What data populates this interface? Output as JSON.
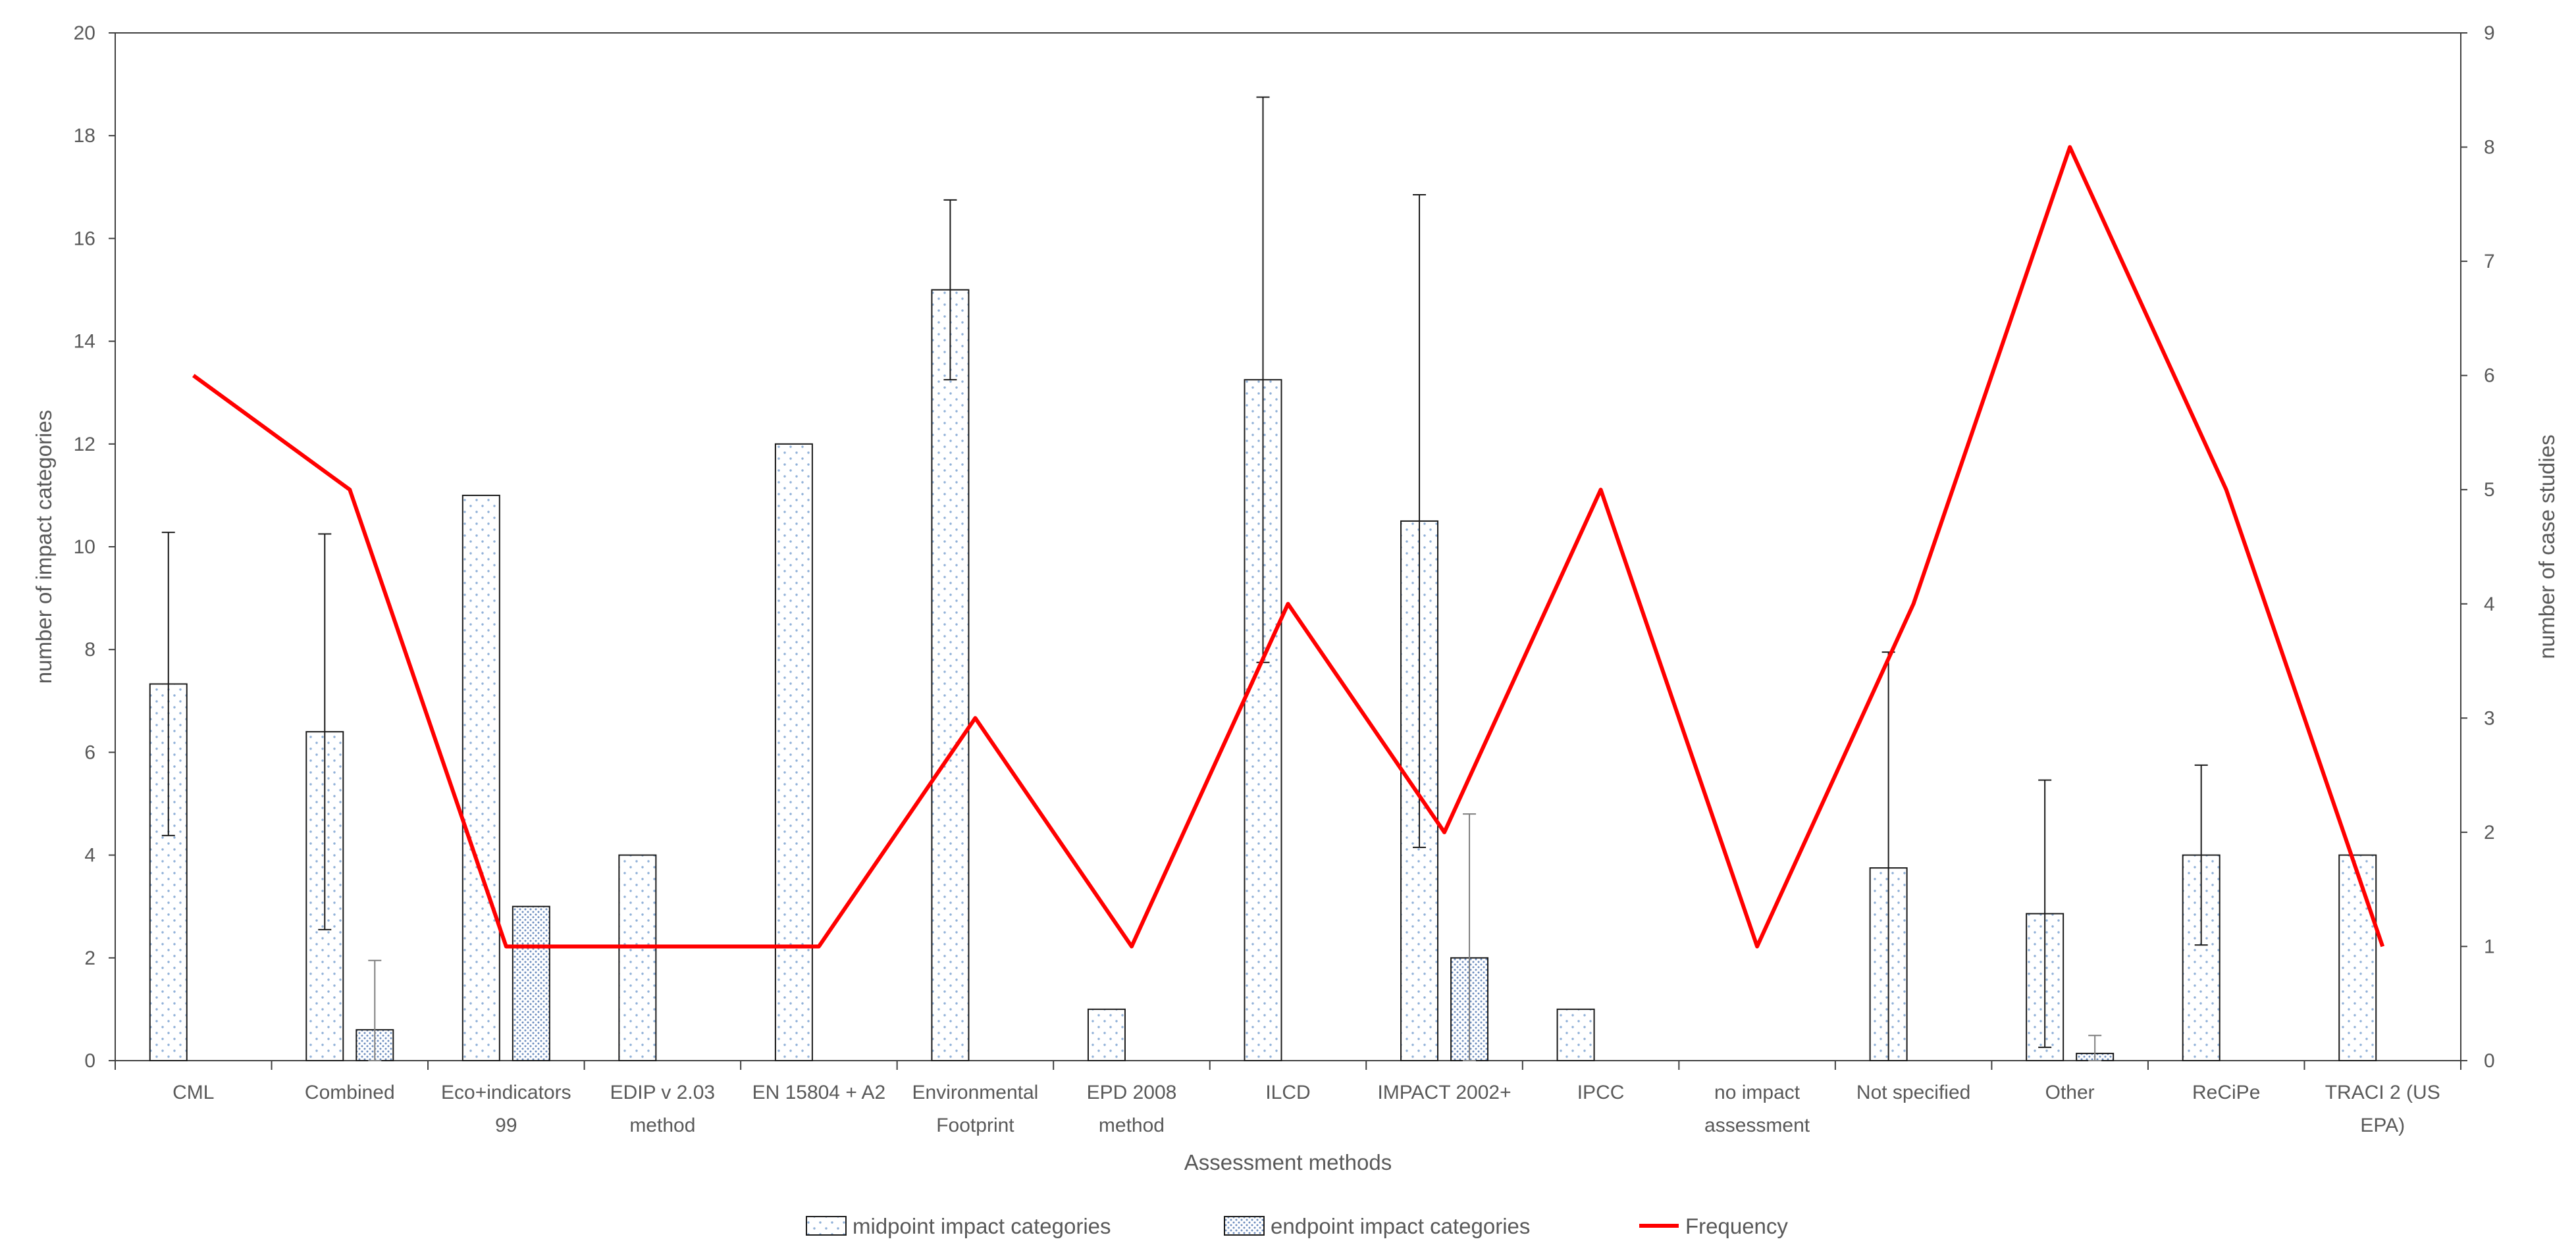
{
  "chart_data": {
    "type": "bar",
    "xlabel": "Assessment methods",
    "ylabel": "number of impact categories",
    "y2label": "number of case studies",
    "ylim": [
      0,
      20
    ],
    "y2lim": [
      0,
      9
    ],
    "yticks": [
      "0",
      "2",
      "4",
      "6",
      "8",
      "10",
      "12",
      "14",
      "16",
      "18",
      "20"
    ],
    "y2ticks": [
      "0",
      "1",
      "2",
      "3",
      "4",
      "5",
      "6",
      "7",
      "8",
      "9"
    ],
    "categories": [
      [
        "CML"
      ],
      [
        "Combined"
      ],
      [
        "Eco+indicators",
        "99"
      ],
      [
        "EDIP v 2.03",
        "method"
      ],
      [
        "EN 15804 + A2"
      ],
      [
        "Environmental",
        "Footprint"
      ],
      [
        "EPD 2008",
        "method"
      ],
      [
        "ILCD"
      ],
      [
        "IMPACT 2002+"
      ],
      [
        "IPCC"
      ],
      [
        "no impact",
        "assessment"
      ],
      [
        "Not specified"
      ],
      [
        "Other"
      ],
      [
        "ReCiPe"
      ],
      [
        "TRACI 2 (US",
        "EPA)"
      ]
    ],
    "series": [
      {
        "name": "midpoint impact categories",
        "kind": "bar",
        "axis": "left",
        "values": [
          7.33,
          6.4,
          11,
          4,
          12,
          15,
          1,
          13.25,
          10.5,
          1,
          null,
          3.75,
          2.86,
          4,
          4
        ],
        "error": [
          2.95,
          3.85,
          null,
          null,
          null,
          1.75,
          null,
          5.5,
          6.35,
          null,
          null,
          4.2,
          2.6,
          1.75,
          null
        ]
      },
      {
        "name": "endpoint impact categories",
        "kind": "bar",
        "axis": "left",
        "values": [
          null,
          0.6,
          3,
          null,
          null,
          null,
          null,
          null,
          2,
          null,
          null,
          null,
          0.14,
          null,
          null
        ],
        "error": [
          null,
          1.35,
          null,
          null,
          null,
          null,
          null,
          null,
          2.8,
          null,
          null,
          null,
          0.35,
          null,
          null
        ]
      },
      {
        "name": "Frequency",
        "kind": "line",
        "axis": "right",
        "color": "#ff0000",
        "values": [
          6,
          5,
          1,
          1,
          1,
          3,
          1,
          4,
          2,
          5,
          1,
          4,
          8,
          5,
          1
        ]
      }
    ],
    "grid": false,
    "legend_position": "bottom"
  }
}
